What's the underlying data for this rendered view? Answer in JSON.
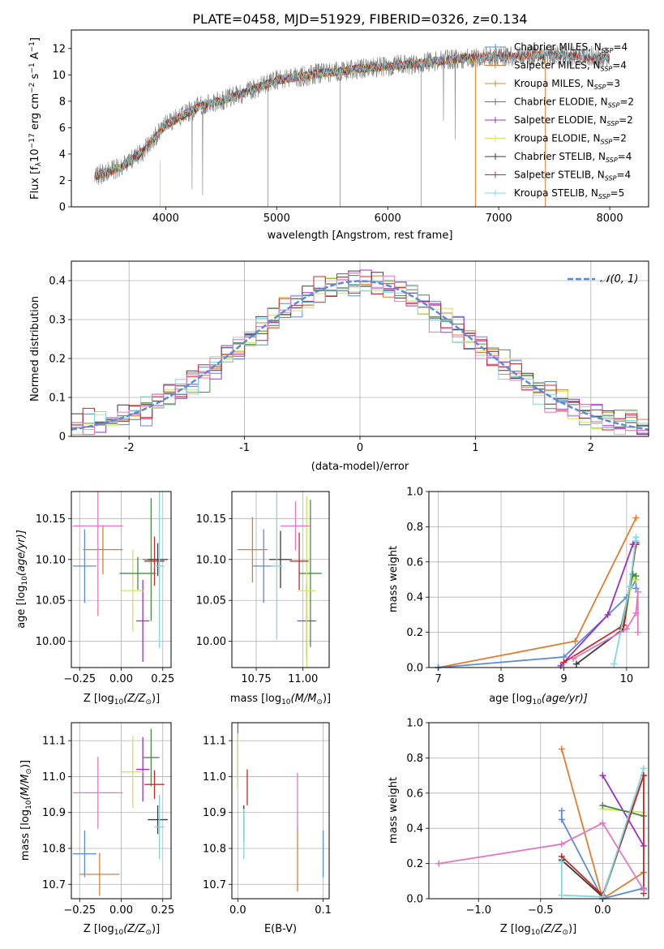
{
  "chart_data": [
    {
      "id": "spectrum",
      "type": "line",
      "title": "PLATE=0458, MJD=51929, FIBERID=0326, z=0.134",
      "xlabel": "wavelength [Angstrom, rest frame]",
      "ylabel_parts": [
        "Flux [f",
        "λ",
        "10",
        "−17",
        " erg cm",
        "−2",
        " s",
        "−1",
        " A",
        "−1",
        "]"
      ],
      "xlim": [
        3150,
        8350
      ],
      "ylim": [
        0,
        13.4
      ],
      "xticks": [
        4000,
        5000,
        6000,
        7000,
        8000
      ],
      "yticks": [
        0,
        2,
        4,
        6,
        8,
        10,
        12
      ],
      "grid": false,
      "legend_position": "right",
      "continuum_x": [
        3360,
        3600,
        3800,
        4000,
        4300,
        4600,
        5000,
        5400,
        5800,
        6200,
        6600,
        7000,
        7400,
        7800,
        8000
      ],
      "continuum_y": [
        2.3,
        3.0,
        4.2,
        6.2,
        7.6,
        8.3,
        9.6,
        10.1,
        10.5,
        10.8,
        11.2,
        11.4,
        11.5,
        11.4,
        11.3
      ],
      "series": [
        {
          "name_main": "Chabrier MILES, N",
          "name_sub": "SSP",
          "name_tail": "=4",
          "color": "#5b8bd6",
          "xmax": 7100
        },
        {
          "name_main": "Salpeter MILES, N",
          "name_sub": "SSP",
          "name_tail": "=4",
          "color": "#e07c30",
          "xmax": 7420
        },
        {
          "name_main": "Kroupa MILES, N",
          "name_sub": "SSP",
          "name_tail": "=3",
          "color": "#c78f2c",
          "xmax": 6790
        },
        {
          "name_main": "Chabrier ELODIE, N",
          "name_sub": "SSP",
          "name_tail": "=2",
          "color": "#4c8a4a",
          "xmax": 6800
        },
        {
          "name_main": "Salpeter ELODIE, N",
          "name_sub": "SSP",
          "name_tail": "=2",
          "color": "#9b30c8",
          "xmax": 6800
        },
        {
          "name_main": "Kroupa ELODIE, N",
          "name_sub": "SSP",
          "name_tail": "=2",
          "color": "#cde65a",
          "xmax": 6800
        },
        {
          "name_main": "Chabrier STELIB, N",
          "name_sub": "SSP",
          "name_tail": "=4",
          "color": "#3a3a3a",
          "xmax": 8000
        },
        {
          "name_main": "Salpeter STELIB, N",
          "name_sub": "SSP",
          "name_tail": "=4",
          "color": "#c82828",
          "xmax": 8000
        },
        {
          "name_main": "Kroupa STELIB, N",
          "name_sub": "SSP",
          "name_tail": "=5",
          "color": "#7fd8e0",
          "xmax": 8000
        }
      ]
    },
    {
      "id": "residuals",
      "type": "histogram",
      "xlabel": "(data-model)/error",
      "ylabel": "Normed distribution",
      "xlim": [
        -2.5,
        2.5
      ],
      "ylim": [
        0,
        0.45
      ],
      "xticks": [
        -2,
        -1,
        0,
        1,
        2
      ],
      "yticks": [
        0.0,
        0.1,
        0.2,
        0.3,
        0.4
      ],
      "grid": true,
      "legend_position": "top-right",
      "reference_curve": {
        "name": "𝒩(0, 1)",
        "color": "#5b8bd6",
        "style": "dashed"
      },
      "bin_width": 0.1,
      "series_colors": [
        "#5b8bd6",
        "#e07c30",
        "#4c8a4a",
        "#9b30c8",
        "#cde65a",
        "#3a3a3a",
        "#c82828",
        "#7fd8e0",
        "#e377c2"
      ],
      "bin_offsets": [
        [
          0.02,
          -0.03,
          0.01,
          0.03,
          -0.02,
          0.0,
          0.04,
          -0.01,
          0.02,
          -0.03
        ],
        [
          -0.01,
          0.02,
          -0.02,
          0.01,
          0.03,
          -0.03,
          0.0,
          0.02,
          -0.01,
          0.01
        ],
        [
          0.0,
          0.01,
          0.03,
          -0.02,
          0.01,
          0.02,
          -0.03,
          0.01,
          0.0,
          0.02
        ],
        [
          0.03,
          -0.02,
          0.0,
          0.02,
          -0.01,
          0.01,
          0.02,
          -0.02,
          0.03,
          0.0
        ],
        [
          -0.02,
          0.0,
          0.02,
          0.04,
          0.0,
          -0.02,
          0.01,
          0.03,
          -0.02,
          -0.01
        ],
        [
          0.01,
          0.03,
          -0.01,
          0.0,
          0.02,
          0.03,
          -0.01,
          0.0,
          0.01,
          0.03
        ]
      ]
    },
    {
      "id": "age-vs-z",
      "type": "errorbar",
      "xlabel_parts": [
        "Z [log",
        "10",
        "(Z/Z",
        "⊙",
        ")]"
      ],
      "ylabel_parts": [
        "age  [log",
        "10",
        "(age/yr)]"
      ],
      "xlim": [
        -0.3,
        0.3
      ],
      "ylim": [
        9.968,
        10.183
      ],
      "xticks": [
        -0.25,
        0.0,
        0.25
      ],
      "xticklabels": [
        "−0.25",
        "0.00",
        "0.25"
      ],
      "yticks": [
        10.0,
        10.05,
        10.1,
        10.15
      ],
      "yticklabels": [
        "10.00",
        "10.05",
        "10.10",
        "10.15"
      ],
      "grid": true,
      "points": [
        {
          "x": -0.22,
          "y": 10.092,
          "xerr": 0.07,
          "yerr": 0.045,
          "color": "#5b8bd6"
        },
        {
          "x": -0.11,
          "y": 10.112,
          "xerr": 0.12,
          "yerr": 0.03,
          "color": "#e07c30"
        },
        {
          "x": 0.18,
          "y": 10.1,
          "xerr": 0.05,
          "yerr": 0.075,
          "color": "#4c8a4a"
        },
        {
          "x": 0.13,
          "y": 10.025,
          "xerr": 0.04,
          "yerr": 0.05,
          "color": "#9b30c8"
        },
        {
          "x": 0.07,
          "y": 10.062,
          "xerr": 0.07,
          "yerr": 0.05,
          "color": "#cde65a"
        },
        {
          "x": 0.22,
          "y": 10.1,
          "xerr": 0.06,
          "yerr": 0.02,
          "color": "#3a3a3a"
        },
        {
          "x": 0.2,
          "y": 10.098,
          "xerr": 0.06,
          "yerr": 0.03,
          "color": "#c82828"
        },
        {
          "x": 0.23,
          "y": 10.092,
          "xerr": 0.03,
          "yerr": 0.1,
          "color": "#7fd8e0"
        },
        {
          "x": -0.14,
          "y": 10.141,
          "xerr": 0.15,
          "yerr": 0.11,
          "color": "#e377c2"
        },
        {
          "x": 0.1,
          "y": 10.083,
          "xerr": 0.11,
          "yerr": 0.02,
          "color": "#4c8a4a"
        }
      ]
    },
    {
      "id": "age-vs-mass",
      "type": "errorbar",
      "xlabel_parts": [
        "mass [log",
        "10",
        "(M/M",
        "⊙",
        ")]"
      ],
      "xlim": [
        10.62,
        11.14
      ],
      "ylim": [
        9.968,
        10.183
      ],
      "xticks": [
        10.75,
        11.0
      ],
      "xticklabels": [
        "10.75",
        "11.00"
      ],
      "yticks": [
        10.0,
        10.05,
        10.1,
        10.15
      ],
      "yticklabels": [
        "10.00",
        "10.05",
        "10.10",
        "10.15"
      ],
      "grid": true,
      "points": [
        {
          "x": 10.79,
          "y": 10.092,
          "xerr": 0.06,
          "yerr": 0.045,
          "color": "#5b8bd6"
        },
        {
          "x": 10.73,
          "y": 10.112,
          "xerr": 0.08,
          "yerr": 0.04,
          "color": "#e07c30"
        },
        {
          "x": 11.04,
          "y": 10.083,
          "xerr": 0.06,
          "yerr": 0.09,
          "color": "#4c8a4a"
        },
        {
          "x": 11.02,
          "y": 10.025,
          "xerr": 0.05,
          "yerr": 0.045,
          "color": "#9b30c8"
        },
        {
          "x": 11.02,
          "y": 10.062,
          "xerr": 0.05,
          "yerr": 0.115,
          "color": "#cde65a"
        },
        {
          "x": 10.88,
          "y": 10.1,
          "xerr": 0.06,
          "yerr": 0.035,
          "color": "#3a3a3a"
        },
        {
          "x": 10.98,
          "y": 10.098,
          "xerr": 0.05,
          "yerr": 0.035,
          "color": "#c82828"
        },
        {
          "x": 10.86,
          "y": 10.092,
          "xerr": 0.03,
          "yerr": 0.09,
          "color": "#7fd8e0"
        },
        {
          "x": 10.96,
          "y": 10.141,
          "xerr": 0.08,
          "yerr": 0.03,
          "color": "#e377c2"
        }
      ]
    },
    {
      "id": "weight-vs-age",
      "type": "line",
      "xlabel_parts": [
        "age  [log",
        "10",
        "(age/yr)]"
      ],
      "ylabel": "mass weight",
      "xlim": [
        6.85,
        10.35
      ],
      "ylim": [
        0,
        1.0
      ],
      "xticks": [
        7,
        8,
        9,
        10
      ],
      "yticks": [
        0.0,
        0.2,
        0.4,
        0.6,
        0.8,
        1.0
      ],
      "yticklabels": [
        "0.0",
        "0.2",
        "0.4",
        "0.6",
        "0.8",
        "1.0"
      ],
      "grid": true,
      "series": [
        {
          "color": "#e07c30",
          "x": [
            7.0,
            9.18,
            10.15
          ],
          "y": [
            0.0,
            0.15,
            0.85
          ]
        },
        {
          "color": "#5b8bd6",
          "x": [
            7.0,
            9.0,
            10.0,
            10.15,
            10.15
          ],
          "y": [
            0.0,
            0.06,
            0.4,
            0.5,
            0.45
          ]
        },
        {
          "color": "#9b30c8",
          "x": [
            8.95,
            9.7,
            10.1,
            10.15
          ],
          "y": [
            0.01,
            0.3,
            0.7,
            0.71
          ]
        },
        {
          "color": "#cde65a",
          "x": [
            9.95,
            10.1,
            10.15
          ],
          "y": [
            0.22,
            0.52,
            0.5
          ]
        },
        {
          "color": "#4c8a4a",
          "x": [
            9.9,
            10.1,
            10.15
          ],
          "y": [
            0.22,
            0.53,
            0.52
          ]
        },
        {
          "color": "#3a3a3a",
          "x": [
            9.2,
            9.95,
            10.15
          ],
          "y": [
            0.02,
            0.22,
            0.7
          ]
        },
        {
          "color": "#c82828",
          "x": [
            9.0,
            9.95,
            10.15
          ],
          "y": [
            0.03,
            0.24,
            0.7
          ]
        },
        {
          "color": "#7fd8e0",
          "x": [
            9.8,
            10.05,
            10.15,
            10.15
          ],
          "y": [
            0.02,
            0.46,
            0.74,
            0.72
          ]
        },
        {
          "color": "#e377c2",
          "x": [
            9.15,
            10.0,
            10.15,
            10.18,
            10.18
          ],
          "y": [
            0.05,
            0.22,
            0.31,
            0.43,
            0.2
          ]
        }
      ]
    },
    {
      "id": "mass-vs-z",
      "type": "errorbar",
      "xlabel_parts": [
        "Z [log",
        "10",
        "(Z/Z",
        "⊙",
        ")]"
      ],
      "ylabel_parts": [
        "mass [log",
        "10",
        "(M/M",
        "⊙",
        ")]"
      ],
      "xlim": [
        -0.3,
        0.3
      ],
      "ylim": [
        10.66,
        11.15
      ],
      "xticks": [
        -0.25,
        0.0,
        0.25
      ],
      "xticklabels": [
        "−0.25",
        "0.00",
        "0.25"
      ],
      "yticks": [
        10.7,
        10.8,
        10.9,
        11.0,
        11.1
      ],
      "yticklabels": [
        "10.7",
        "10.8",
        "10.9",
        "11.0",
        "11.1"
      ],
      "grid": true,
      "points": [
        {
          "x": -0.22,
          "y": 10.785,
          "xerr": 0.07,
          "yerr": 0.065,
          "color": "#5b8bd6"
        },
        {
          "x": -0.13,
          "y": 10.728,
          "xerr": 0.12,
          "yerr": 0.06,
          "color": "#e07c30"
        },
        {
          "x": 0.18,
          "y": 11.053,
          "xerr": 0.05,
          "yerr": 0.08,
          "color": "#4c8a4a"
        },
        {
          "x": 0.13,
          "y": 11.02,
          "xerr": 0.04,
          "yerr": 0.09,
          "color": "#9b30c8"
        },
        {
          "x": 0.07,
          "y": 11.013,
          "xerr": 0.07,
          "yerr": 0.1,
          "color": "#cde65a"
        },
        {
          "x": 0.22,
          "y": 10.88,
          "xerr": 0.06,
          "yerr": 0.04,
          "color": "#3a3a3a"
        },
        {
          "x": 0.2,
          "y": 10.978,
          "xerr": 0.06,
          "yerr": 0.04,
          "color": "#c82828"
        },
        {
          "x": 0.23,
          "y": 10.86,
          "xerr": 0.03,
          "yerr": 0.09,
          "color": "#7fd8e0"
        },
        {
          "x": -0.14,
          "y": 10.955,
          "xerr": 0.15,
          "yerr": 0.1,
          "color": "#e377c2"
        }
      ]
    },
    {
      "id": "mass-vs-ebv",
      "type": "errorbar",
      "xlabel": "E(B-V)",
      "xlim": [
        -0.007,
        0.107
      ],
      "ylim": [
        10.66,
        11.15
      ],
      "xticks": [
        0.0,
        0.1
      ],
      "xticklabels": [
        "0.0",
        "0.1"
      ],
      "yticks": [
        10.7,
        10.8,
        10.9,
        11.0,
        11.1
      ],
      "yticklabels": [
        "10.7",
        "10.8",
        "10.9",
        "11.0",
        "11.1"
      ],
      "grid": true,
      "points": [
        {
          "x": 0.1,
          "y": 10.785,
          "xerr": 0.0,
          "yerr": 0.065,
          "color": "#5b8bd6"
        },
        {
          "x": 0.07,
          "y": 10.77,
          "xerr": 0.0,
          "yerr": 0.09,
          "color": "#e07c30"
        },
        {
          "x": 0.0,
          "y": 11.06,
          "xerr": 0.0,
          "yerr": 0.09,
          "color": "#4c8a4a"
        },
        {
          "x": 0.0,
          "y": 11.04,
          "xerr": 0.0,
          "yerr": 0.08,
          "color": "#cde65a"
        },
        {
          "x": 0.007,
          "y": 10.87,
          "xerr": 0.0,
          "yerr": 0.05,
          "color": "#3a3a3a"
        },
        {
          "x": 0.011,
          "y": 10.97,
          "xerr": 0.0,
          "yerr": 0.05,
          "color": "#c82828"
        },
        {
          "x": 0.007,
          "y": 10.84,
          "xerr": 0.0,
          "yerr": 0.07,
          "color": "#7fd8e0"
        },
        {
          "x": 0.07,
          "y": 10.93,
          "xerr": 0.0,
          "yerr": 0.08,
          "color": "#e377c2"
        }
      ]
    },
    {
      "id": "weight-vs-z",
      "type": "line",
      "xlabel_parts": [
        "Z [log",
        "10",
        "(Z/Z",
        "⊙",
        ")]"
      ],
      "ylabel": "mass weight",
      "xlim": [
        -1.4,
        0.37
      ],
      "ylim": [
        0,
        1.0
      ],
      "xticks": [
        -1.0,
        -0.5,
        0.0
      ],
      "xticklabels": [
        "−1.0",
        "−0.5",
        "0.0"
      ],
      "yticks": [
        0.0,
        0.2,
        0.4,
        0.6,
        0.8,
        1.0
      ],
      "yticklabels": [
        "0.0",
        "0.2",
        "0.4",
        "0.6",
        "0.8",
        "1.0"
      ],
      "grid": true,
      "series": [
        {
          "color": "#e07c30",
          "x": [
            -0.33,
            0.0,
            0.33
          ],
          "y": [
            0.85,
            0.0,
            0.15
          ]
        },
        {
          "color": "#5b8bd6",
          "x": [
            -0.33,
            -0.33,
            0.0,
            0.33
          ],
          "y": [
            0.5,
            0.45,
            0.0,
            0.06
          ]
        },
        {
          "color": "#9b30c8",
          "x": [
            0.0,
            0.33
          ],
          "y": [
            0.7,
            0.3
          ]
        },
        {
          "color": "#cde65a",
          "x": [
            0.0,
            0.33
          ],
          "y": [
            0.51,
            0.49
          ]
        },
        {
          "color": "#4c8a4a",
          "x": [
            0.0,
            0.33
          ],
          "y": [
            0.53,
            0.47
          ]
        },
        {
          "color": "#3a3a3a",
          "x": [
            -0.33,
            0.0,
            0.33
          ],
          "y": [
            0.22,
            0.01,
            0.7
          ]
        },
        {
          "color": "#c82828",
          "x": [
            -0.33,
            0.0,
            0.33,
            0.33
          ],
          "y": [
            0.24,
            0.02,
            0.7,
            0.03
          ]
        },
        {
          "color": "#7fd8e0",
          "x": [
            -0.33,
            -0.33,
            0.0,
            0.33
          ],
          "y": [
            0.21,
            0.02,
            0.01,
            0.74
          ]
        },
        {
          "color": "#e377c2",
          "x": [
            -1.32,
            -0.33,
            0.0,
            0.33
          ],
          "y": [
            0.2,
            0.31,
            0.43,
            0.05
          ]
        }
      ]
    }
  ]
}
